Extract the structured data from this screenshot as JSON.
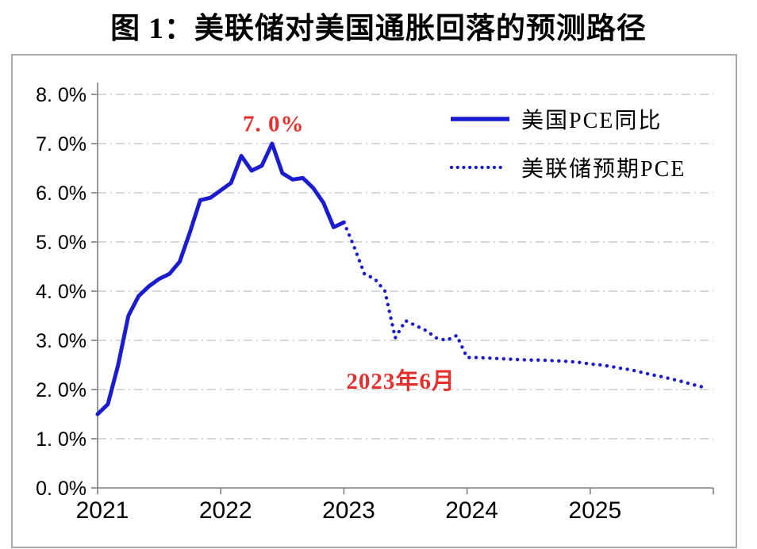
{
  "title": "图 1：美联储对美国通胀回落的预测路径",
  "colors": {
    "line_blue": "#1b1bd0",
    "annotation_red": "#e5302e",
    "grid_gray": "#cccccc",
    "axis_gray": "#7f7f7f",
    "panel_border": "#a9a9a9",
    "label_black": "#000000"
  },
  "legend": {
    "items": [
      {
        "label": "美国PCE同比",
        "style": "solid"
      },
      {
        "label": "美联储预期PCE",
        "style": "dotted"
      }
    ]
  },
  "chart_data": {
    "type": "line",
    "title": "图 1：美联储对美国通胀回落的预测路径",
    "x_axis": {
      "start": "2021-01",
      "months_span": 60,
      "tick_labels": [
        "2021",
        "2022",
        "2023",
        "2024",
        "2025"
      ],
      "tick_month_positions": [
        0,
        12,
        24,
        36,
        48,
        60
      ]
    },
    "y_axis": {
      "min": 0,
      "max": 8,
      "unit": "%",
      "tick_labels": [
        "0. 0%",
        "1. 0%",
        "2. 0%",
        "3. 0%",
        "4. 0%",
        "5. 0%",
        "6. 0%",
        "7. 0%",
        "8. 0%"
      ]
    },
    "grid": "horizontal-dash-dot",
    "legend_position": "top-right-inside",
    "series": [
      {
        "name": "美国PCE同比",
        "style": "solid",
        "start_month_index": 0,
        "values": [
          1.5,
          1.7,
          2.5,
          3.5,
          3.9,
          4.1,
          4.25,
          4.35,
          4.6,
          5.2,
          5.85,
          5.9,
          6.05,
          6.2,
          6.75,
          6.45,
          6.55,
          7.0,
          6.4,
          6.27,
          6.3,
          6.1,
          5.8,
          5.3,
          5.4
        ]
      },
      {
        "name": "美联储预期PCE",
        "style": "dotted",
        "start_month_index": 24,
        "values": [
          5.4,
          4.9,
          4.35,
          4.25,
          4.0,
          3.05,
          3.4,
          3.3,
          3.2,
          3.05,
          3.0,
          3.1,
          2.65,
          2.65,
          2.64,
          2.63,
          2.62,
          2.61,
          2.6,
          2.6,
          2.59,
          2.58,
          2.57,
          2.55,
          2.52,
          2.5,
          2.47,
          2.43,
          2.4,
          2.35,
          2.3,
          2.26,
          2.21,
          2.16,
          2.1,
          2.05
        ]
      }
    ],
    "annotations": [
      {
        "text": "7. 0%",
        "month": 17.3,
        "value": 7.35
      },
      {
        "text": "2023年6月",
        "month": 29.7,
        "value": 2.18
      }
    ]
  }
}
